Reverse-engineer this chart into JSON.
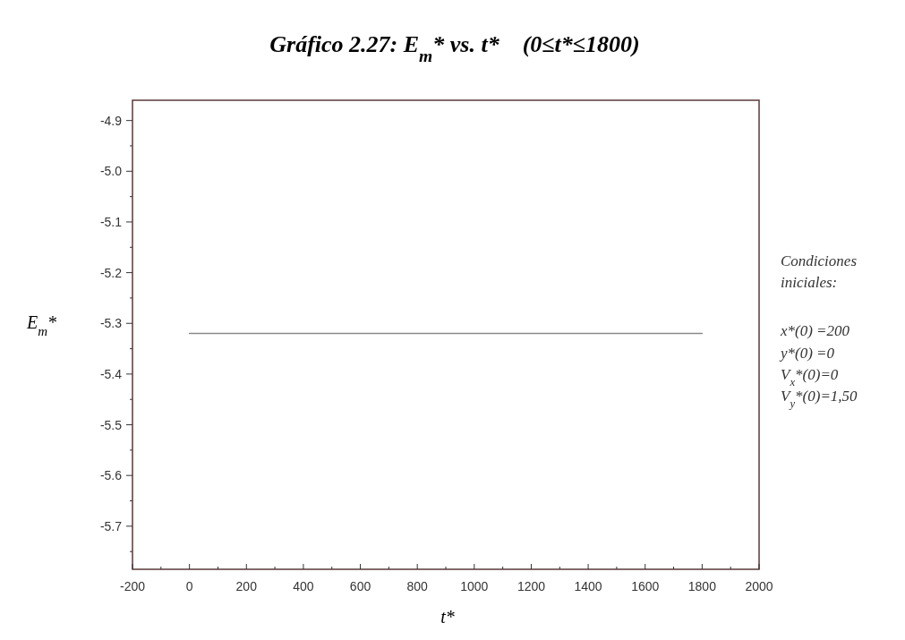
{
  "chart_data": {
    "type": "line",
    "title": "Gráfico 2.27: E$_{m}$* vs. t*    (0≤t*≤1800)",
    "xlabel": "t*",
    "ylabel": "E$_{m}$*",
    "series": [
      {
        "color": "#8a8a8a",
        "x": [
          0,
          1800
        ],
        "values": [
          -5.32,
          -5.32
        ]
      }
    ],
    "xlim": [
      -200,
      2000
    ],
    "ylim": [
      -5.785,
      -4.86
    ],
    "xticks": [
      -200,
      {
        "value": -100,
        "label": null
      },
      0,
      {
        "value": 100,
        "label": null
      },
      200,
      {
        "value": 300,
        "label": null
      },
      400,
      {
        "value": 500,
        "label": null
      },
      600,
      {
        "value": 700,
        "label": null
      },
      800,
      {
        "value": 900,
        "label": null
      },
      1000,
      {
        "value": 1100,
        "label": null
      },
      1200,
      {
        "value": 1300,
        "label": null
      },
      1400,
      {
        "value": 1500,
        "label": null
      },
      1600,
      {
        "value": 1700,
        "label": null
      },
      1800,
      {
        "value": 1900,
        "label": null
      },
      2000
    ],
    "yticks": [
      {
        "value": -5.75,
        "label": null
      },
      {
        "value": -5.7,
        "label": "-5.7"
      },
      {
        "value": -5.65,
        "label": null
      },
      {
        "value": -5.6,
        "label": "-5.6"
      },
      {
        "value": -5.55,
        "label": null
      },
      {
        "value": -5.5,
        "label": "-5.5"
      },
      {
        "value": -5.45,
        "label": null
      },
      {
        "value": -5.4,
        "label": "-5.4"
      },
      {
        "value": -5.35,
        "label": null
      },
      {
        "value": -5.3,
        "label": "-5.3"
      },
      {
        "value": -5.25,
        "label": null
      },
      {
        "value": -5.2,
        "label": "-5.2"
      },
      {
        "value": -5.15,
        "label": null
      },
      {
        "value": -5.1,
        "label": "-5.1"
      },
      {
        "value": -5.05,
        "label": null
      },
      {
        "value": -5.0,
        "label": "-5.0"
      },
      {
        "value": -4.95,
        "label": null
      },
      {
        "value": -4.9,
        "label": "-4.9"
      }
    ],
    "annotations": [
      "Condiciones iniciales:",
      "x*(0) =200",
      "y*(0) =0",
      "V$_{x}$*(0)=0",
      "V$_{y}$*(0)=1,50"
    ],
    "grid": false,
    "marker": "none",
    "line_style": "solid"
  }
}
